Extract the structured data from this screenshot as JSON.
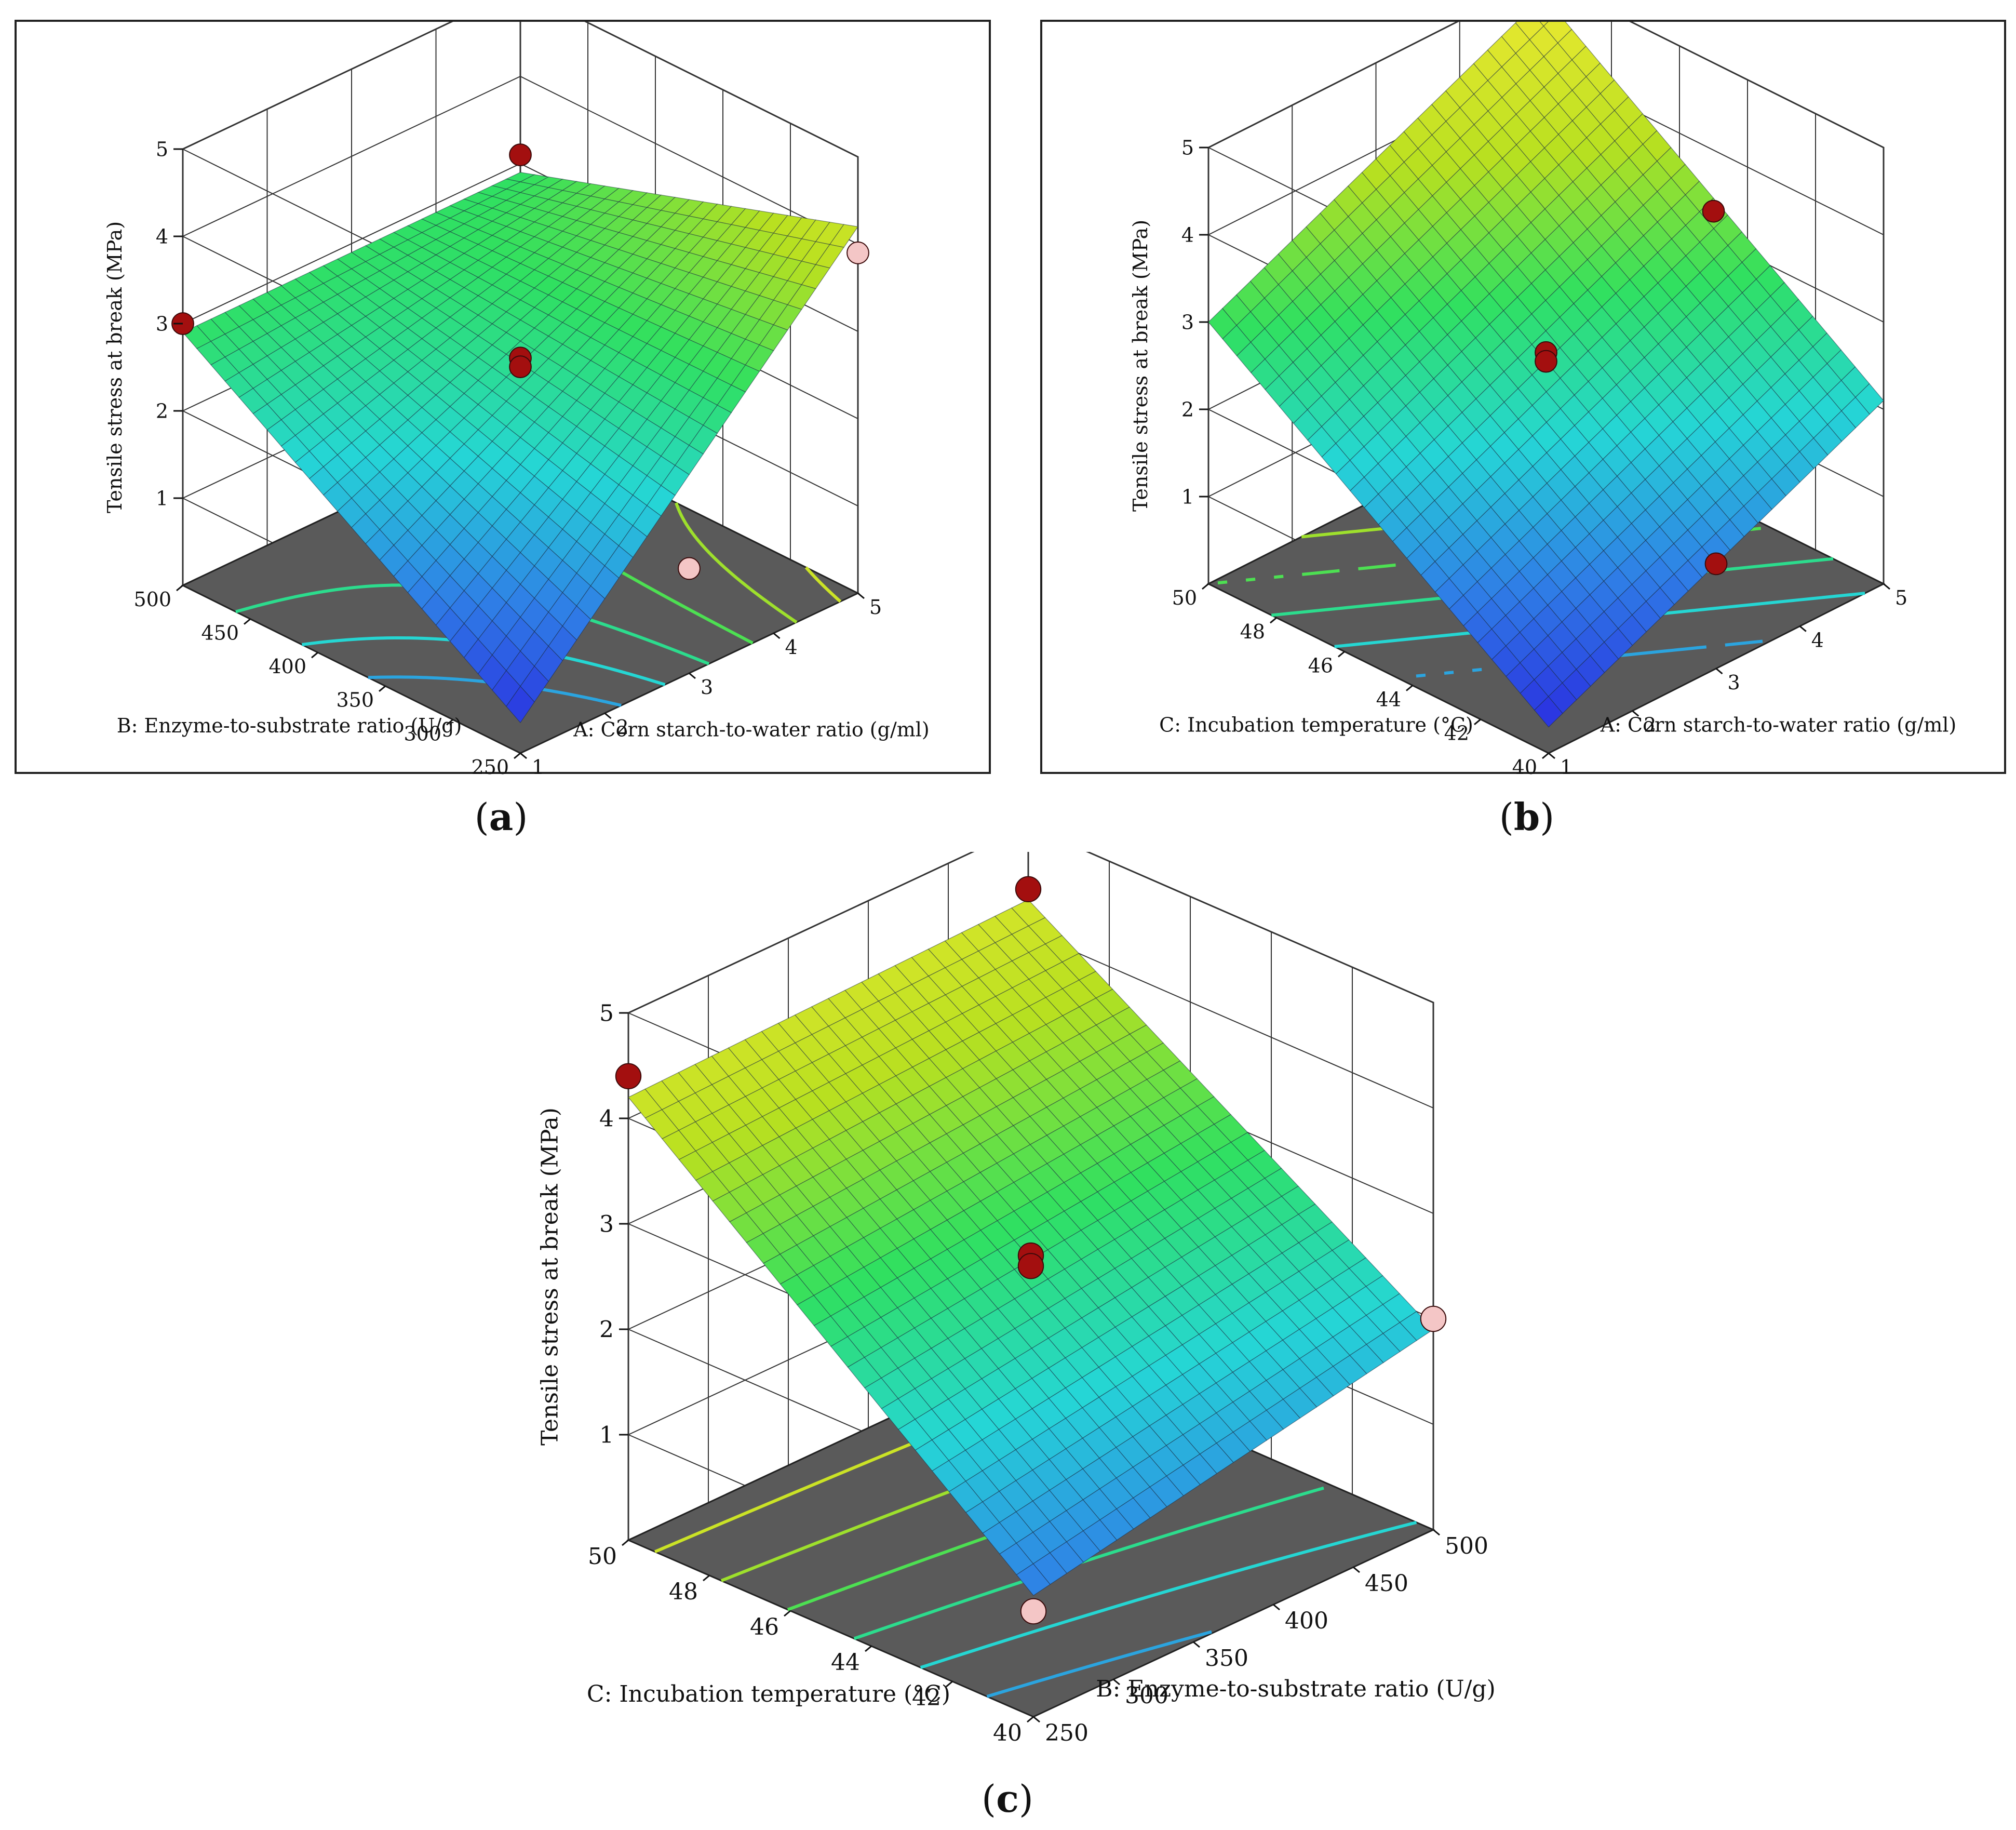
{
  "figure": {
    "captions": [
      {
        "open": "(",
        "letter": "a",
        "close": ")"
      },
      {
        "open": "(",
        "letter": "b",
        "close": ")"
      },
      {
        "open": "(",
        "letter": "c",
        "close": ")"
      }
    ]
  },
  "colors": {
    "floor": "#5a5a5a",
    "grid": "#333333",
    "design_point_above": "#a30f0f",
    "design_point_below": "#f4c6c6",
    "colormap": [
      "#2a2ee0",
      "#2f7fe6",
      "#25d6d6",
      "#30e060",
      "#b8e020",
      "#e8e830"
    ]
  },
  "chart_data": [
    {
      "type": "surface",
      "panel": "a",
      "zlabel": "Tensile stress at break (MPa)",
      "xlabel": "A: Corn starch-to-water ratio (g/ml)",
      "ylabel": "B: Enzyme-to-substrate ratio (U/g)",
      "x_ticks": [
        1,
        2,
        3,
        4,
        5
      ],
      "y_ticks": [
        250,
        300,
        350,
        400,
        450,
        500
      ],
      "z_ticks": [
        1,
        2,
        3,
        4,
        5
      ],
      "xlim": [
        1,
        5
      ],
      "ylim": [
        250,
        500
      ],
      "zlim": [
        0,
        5
      ],
      "surface_corners": {
        "x1_ylow": 0.35,
        "x1_yhigh": 2.9,
        "x5_ylow": 4.2,
        "x5_yhigh": 2.9
      },
      "grid": true,
      "design_points": [
        {
          "x": 1,
          "y": 500,
          "z": 3.0,
          "pos": "above"
        },
        {
          "x": 3,
          "y": 375,
          "z": 2.65,
          "pos": "above"
        },
        {
          "x": 3,
          "y": 375,
          "z": 2.55,
          "pos": "above"
        },
        {
          "x": 5,
          "y": 500,
          "z": 3.1,
          "pos": "above"
        },
        {
          "x": 5,
          "y": 250,
          "z": 3.9,
          "pos": "below"
        },
        {
          "x": 3,
          "y": 250,
          "z": 1.2,
          "pos": "below"
        }
      ]
    },
    {
      "type": "surface",
      "panel": "b",
      "zlabel": "Tensile stress at break (MPa)",
      "xlabel": "A: Corn starch-to-water ratio (g/ml)",
      "ylabel": "C: Incubation temperature (°C)",
      "x_ticks": [
        1,
        2,
        3,
        4,
        5
      ],
      "y_ticks": [
        40,
        42,
        44,
        46,
        48,
        50
      ],
      "z_ticks": [
        1,
        2,
        3,
        4,
        5
      ],
      "xlim": [
        1,
        5
      ],
      "ylim": [
        40,
        50
      ],
      "zlim": [
        0,
        5
      ],
      "surface_corners": {
        "x1_ylow": 0.3,
        "x1_yhigh": 3.0,
        "x5_ylow": 2.1,
        "x5_yhigh": 4.8
      },
      "grid": true,
      "design_points": [
        {
          "x": 3,
          "y": 45,
          "z": 2.65,
          "pos": "above"
        },
        {
          "x": 3,
          "y": 45,
          "z": 2.55,
          "pos": "above"
        },
        {
          "x": 5,
          "y": 45,
          "z": 3.3,
          "pos": "above"
        },
        {
          "x": 3,
          "y": 40,
          "z": 1.2,
          "pos": "above"
        }
      ]
    },
    {
      "type": "surface",
      "panel": "c",
      "zlabel": "Tensile stress at break (MPa)",
      "xlabel": "B: Enzyme-to-substrate ratio (U/g)",
      "ylabel": "C: Incubation temperature (°C)",
      "x_ticks": [
        250,
        300,
        350,
        400,
        450,
        500
      ],
      "y_ticks": [
        40,
        42,
        44,
        46,
        48,
        50
      ],
      "z_ticks": [
        1,
        2,
        3,
        4,
        5
      ],
      "xlim": [
        250,
        500
      ],
      "ylim": [
        40,
        50
      ],
      "zlim": [
        0,
        5
      ],
      "surface_corners": {
        "x1_ylow": 1.15,
        "x1_yhigh": 4.2,
        "x5_ylow": 1.9,
        "x5_yhigh": 4.3
      },
      "grid": true,
      "design_points": [
        {
          "x": 250,
          "y": 50,
          "z": 4.4,
          "pos": "above"
        },
        {
          "x": 500,
          "y": 50,
          "z": 4.4,
          "pos": "above"
        },
        {
          "x": 375,
          "y": 45,
          "z": 2.65,
          "pos": "above"
        },
        {
          "x": 375,
          "y": 45,
          "z": 2.55,
          "pos": "above"
        },
        {
          "x": 500,
          "y": 40,
          "z": 2.0,
          "pos": "below"
        },
        {
          "x": 250,
          "y": 40,
          "z": 1.0,
          "pos": "below"
        }
      ]
    }
  ]
}
